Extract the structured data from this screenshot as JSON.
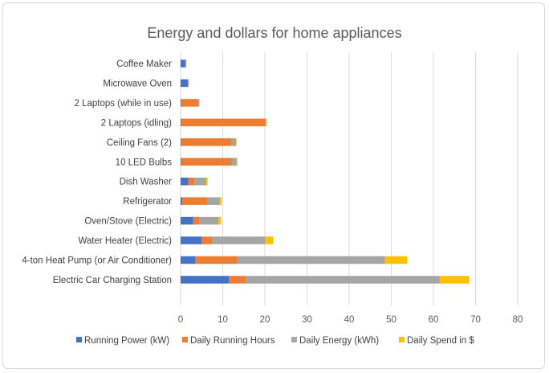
{
  "chart_data": {
    "type": "bar",
    "orientation": "horizontal",
    "stacked": true,
    "title": "Energy and dollars for home appliances",
    "categories": [
      "Coffee Maker",
      "Microwave Oven",
      "2 Laptops (while in use)",
      "2 Laptops (idling)",
      "Ceiling Fans (2)",
      "10 LED Bulbs",
      "Dish Washer",
      "Refrigerator",
      "Oven/Stove (Electric)",
      "Water Heater (Electric)",
      "4-ton Heat Pump (or Air Conditioner)",
      "Electric Car Charging Station"
    ],
    "series": [
      {
        "name": "Running Power (kW)",
        "color": "#4472C4",
        "values": [
          1.2,
          1.7,
          0.1,
          0.05,
          0.15,
          0.1,
          1.8,
          0.4,
          3.0,
          5.0,
          3.5,
          11.5
        ]
      },
      {
        "name": "Daily Running Hours",
        "color": "#ED7D31",
        "values": [
          0.05,
          0.1,
          4.0,
          20.0,
          12.0,
          12.0,
          1.5,
          6.0,
          1.5,
          2.5,
          10.0,
          4.0
        ]
      },
      {
        "name": "Daily Energy (kWh)",
        "color": "#A5A5A5",
        "values": [
          0.05,
          0.15,
          0.3,
          0.3,
          1.0,
          1.2,
          2.7,
          2.9,
          4.5,
          12.5,
          35.0,
          46.0
        ]
      },
      {
        "name": "Daily Spend in $",
        "color": "#FFC000",
        "values": [
          0.0,
          0.0,
          0.05,
          0.1,
          0.1,
          0.2,
          0.4,
          0.4,
          0.6,
          2.0,
          5.3,
          7.0
        ]
      }
    ],
    "x_ticks": [
      0,
      10,
      20,
      30,
      40,
      50,
      60,
      70,
      80
    ],
    "xlim": [
      0,
      80
    ],
    "grid": true,
    "legend_position": "bottom"
  }
}
